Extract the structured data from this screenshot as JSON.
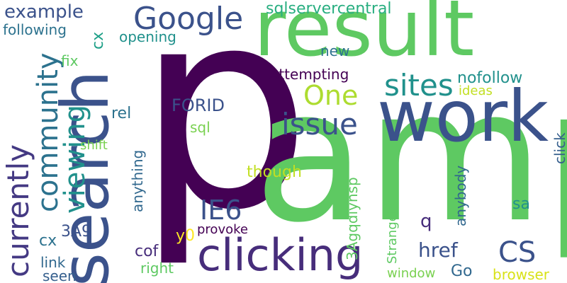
{
  "words": [
    {
      "text": "p",
      "color": "#440154"
    },
    {
      "text": "amp",
      "color": "#5ec962"
    },
    {
      "text": "result",
      "color": "#5ec962"
    },
    {
      "text": "work",
      "color": "#3b528b"
    },
    {
      "text": "search",
      "color": "#3b528b"
    },
    {
      "text": "clicking",
      "color": "#472d7b"
    },
    {
      "text": "Google",
      "color": "#3b528b"
    },
    {
      "text": "currently",
      "color": "#443983"
    },
    {
      "text": "community",
      "color": "#2c728e"
    },
    {
      "text": "viewing",
      "color": "#21918c"
    },
    {
      "text": "sites",
      "color": "#21918c"
    },
    {
      "text": "issue",
      "color": "#3b528b"
    },
    {
      "text": "One",
      "color": "#addc30"
    },
    {
      "text": "CS",
      "color": "#3b528b"
    },
    {
      "text": "IE6",
      "color": "#3b528b"
    },
    {
      "text": "example",
      "color": "#3b528b"
    },
    {
      "text": "sqlservercentral",
      "color": "#28ae80"
    },
    {
      "text": "following",
      "color": "#2c728e"
    },
    {
      "text": "opening",
      "color": "#21918c"
    },
    {
      "text": "cx",
      "color": "#1fa088"
    },
    {
      "text": "fix",
      "color": "#5ec962"
    },
    {
      "text": "new",
      "color": "#2c728e"
    },
    {
      "text": "Attempting",
      "color": "#440154"
    },
    {
      "text": "nofollow",
      "color": "#21918c"
    },
    {
      "text": "ideas",
      "color": "#c2df23"
    },
    {
      "text": "rel",
      "color": "#2c728e"
    },
    {
      "text": "FORID",
      "color": "#3b528b"
    },
    {
      "text": "sql",
      "color": "#7ad151"
    },
    {
      "text": "shift",
      "color": "#7ad151"
    },
    {
      "text": "anything",
      "color": "#31688e"
    },
    {
      "text": "though",
      "color": "#c2df23"
    },
    {
      "text": "3Agqdiynsp",
      "color": "#5ec962"
    },
    {
      "text": "Strangely",
      "color": "#5ec962"
    },
    {
      "text": "anybody",
      "color": "#31688e"
    },
    {
      "text": "click",
      "color": "#355f8d"
    },
    {
      "text": "sa",
      "color": "#21918c"
    },
    {
      "text": "q",
      "color": "#472d7b"
    },
    {
      "text": "3A9",
      "color": "#3b528b"
    },
    {
      "text": "cx",
      "color": "#2c728e"
    },
    {
      "text": "y0",
      "color": "#fde725"
    },
    {
      "text": "provoke",
      "color": "#440154"
    },
    {
      "text": "href",
      "color": "#3b528b"
    },
    {
      "text": "link",
      "color": "#31688e"
    },
    {
      "text": "cof",
      "color": "#472d7b"
    },
    {
      "text": "seen",
      "color": "#355f8d"
    },
    {
      "text": "right",
      "color": "#5ec962"
    },
    {
      "text": "window",
      "color": "#7ad151"
    },
    {
      "text": "Go",
      "color": "#31688e"
    },
    {
      "text": "browser",
      "color": "#d8e219"
    }
  ]
}
